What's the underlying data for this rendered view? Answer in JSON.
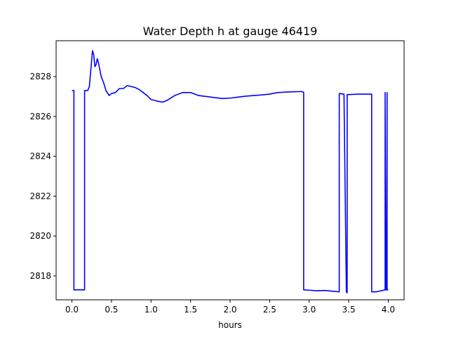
{
  "chart_data": {
    "type": "line",
    "title": "Water Depth h at gauge 46419",
    "xlabel": "hours",
    "ylabel": "",
    "xlim": [
      -0.2,
      4.2
    ],
    "ylim": [
      2816.8,
      2829.8
    ],
    "xticks": [
      0.0,
      0.5,
      1.0,
      1.5,
      2.0,
      2.5,
      3.0,
      3.5,
      4.0
    ],
    "xtick_labels": [
      "0.0",
      "0.5",
      "1.0",
      "1.5",
      "2.0",
      "2.5",
      "3.0",
      "3.5",
      "4.0"
    ],
    "yticks": [
      2818,
      2820,
      2822,
      2824,
      2826,
      2828
    ],
    "ytick_labels": [
      "2818",
      "2820",
      "2822",
      "2824",
      "2826",
      "2828"
    ],
    "grid": false,
    "series": [
      {
        "color": "#0000ff",
        "x": [
          0.0,
          0.025,
          0.025,
          0.16,
          0.16,
          0.2,
          0.22,
          0.24,
          0.26,
          0.275,
          0.29,
          0.305,
          0.32,
          0.335,
          0.35,
          0.37,
          0.4,
          0.43,
          0.47,
          0.5,
          0.55,
          0.6,
          0.65,
          0.7,
          0.75,
          0.8,
          0.85,
          0.9,
          0.95,
          1.0,
          1.05,
          1.1,
          1.15,
          1.2,
          1.3,
          1.4,
          1.5,
          1.6,
          1.7,
          1.8,
          1.9,
          2.0,
          2.1,
          2.2,
          2.3,
          2.4,
          2.5,
          2.6,
          2.7,
          2.8,
          2.9,
          2.93,
          2.93,
          3.0,
          3.1,
          3.2,
          3.3,
          3.38,
          3.38,
          3.44,
          3.47,
          3.48,
          3.48,
          3.51,
          3.62,
          3.79,
          3.79,
          3.85,
          3.96,
          3.96,
          3.97,
          3.98,
          3.985,
          3.985,
          3.99,
          4.0
        ],
        "y": [
          2827.3,
          2827.3,
          2817.3,
          2817.3,
          2827.3,
          2827.3,
          2827.5,
          2828.4,
          2829.3,
          2829.1,
          2828.5,
          2828.6,
          2828.9,
          2828.7,
          2828.4,
          2828.0,
          2827.7,
          2827.3,
          2827.05,
          2827.15,
          2827.2,
          2827.4,
          2827.4,
          2827.55,
          2827.5,
          2827.45,
          2827.35,
          2827.2,
          2827.05,
          2826.85,
          2826.8,
          2826.75,
          2826.72,
          2826.8,
          2827.05,
          2827.2,
          2827.2,
          2827.05,
          2827.0,
          2826.95,
          2826.9,
          2826.92,
          2826.97,
          2827.02,
          2827.05,
          2827.08,
          2827.12,
          2827.2,
          2827.22,
          2827.24,
          2827.25,
          2827.22,
          2817.3,
          2817.28,
          2817.25,
          2817.27,
          2817.23,
          2817.2,
          2827.15,
          2827.12,
          2817.2,
          2817.15,
          2827.1,
          2827.1,
          2827.12,
          2827.12,
          2817.2,
          2817.2,
          2817.3,
          2827.2,
          2817.3,
          2817.3,
          2827.2,
          2817.3,
          2817.3,
          2817.3
        ]
      }
    ]
  }
}
